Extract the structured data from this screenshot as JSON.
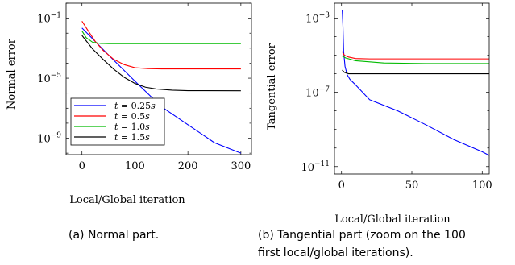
{
  "chart_data": [
    {
      "type": "line",
      "ylabel": "Normal error",
      "xlabel": "Local/Global iteration",
      "yscale": "log",
      "xlim": [
        -30,
        320
      ],
      "ylim_exp": [
        -10.1,
        0
      ],
      "xticks": [
        0,
        100,
        200,
        300
      ],
      "yticks": [
        {
          "base": "10",
          "exp": "−1",
          "value_exp": -1
        },
        {
          "base": "10",
          "exp": "−5",
          "value_exp": -5
        },
        {
          "base": "10",
          "exp": "−9",
          "value_exp": -9
        }
      ],
      "legend_position": "bottom-left",
      "series": [
        {
          "name": "t = 0.25s",
          "var": "t",
          "val": "0.25",
          "unit": "s",
          "color": "#0000ff",
          "points": [
            [
              0,
              -1.65
            ],
            [
              50,
              -3.45
            ],
            [
              100,
              -5.2
            ],
            [
              150,
              -6.9
            ],
            [
              200,
              -8.1
            ],
            [
              250,
              -9.3
            ],
            [
              300,
              -10.0
            ]
          ]
        },
        {
          "name": "t = 0.5s",
          "var": "t",
          "val": "0.5",
          "unit": "s",
          "color": "#ff0000",
          "points": [
            [
              0,
              -1.2
            ],
            [
              10,
              -1.75
            ],
            [
              25,
              -2.55
            ],
            [
              40,
              -3.15
            ],
            [
              60,
              -3.75
            ],
            [
              80,
              -4.1
            ],
            [
              100,
              -4.3
            ],
            [
              125,
              -4.36
            ],
            [
              150,
              -4.38
            ],
            [
              200,
              -4.38
            ],
            [
              300,
              -4.38
            ]
          ]
        },
        {
          "name": "t = 1.0s",
          "var": "t",
          "val": "1.0",
          "unit": "s",
          "color": "#00bb00",
          "points": [
            [
              0,
              -1.85
            ],
            [
              8,
              -2.3
            ],
            [
              20,
              -2.6
            ],
            [
              35,
              -2.68
            ],
            [
              50,
              -2.7
            ],
            [
              100,
              -2.7
            ],
            [
              200,
              -2.7
            ],
            [
              300,
              -2.7
            ]
          ]
        },
        {
          "name": "t = 1.5s",
          "var": "t",
          "val": "1.5",
          "unit": "s",
          "color": "#000000",
          "points": [
            [
              0,
              -2.15
            ],
            [
              20,
              -3.05
            ],
            [
              40,
              -3.75
            ],
            [
              60,
              -4.4
            ],
            [
              80,
              -4.95
            ],
            [
              100,
              -5.35
            ],
            [
              120,
              -5.6
            ],
            [
              140,
              -5.72
            ],
            [
              170,
              -5.8
            ],
            [
              200,
              -5.83
            ],
            [
              300,
              -5.84
            ]
          ]
        }
      ]
    },
    {
      "type": "line",
      "ylabel": "Tangential error",
      "xlabel": "Local/Global iteration",
      "yscale": "log",
      "xlim": [
        -5,
        105
      ],
      "ylim_exp": [
        -11.4,
        -2.2
      ],
      "xticks": [
        0,
        50,
        100
      ],
      "yticks": [
        {
          "base": "10",
          "exp": "−3",
          "value_exp": -3
        },
        {
          "base": "10",
          "exp": "−7",
          "value_exp": -7
        },
        {
          "base": "10",
          "exp": "−11",
          "value_exp": -11
        }
      ],
      "series": [
        {
          "name": "t = 0.25s",
          "color": "#0000ff",
          "points": [
            [
              0.5,
              -2.55
            ],
            [
              1,
              -3.4
            ],
            [
              1.5,
              -4.8
            ],
            [
              2.5,
              -5.6
            ],
            [
              4,
              -6.05
            ],
            [
              6,
              -6.3
            ],
            [
              10,
              -6.6
            ],
            [
              20,
              -7.4
            ],
            [
              40,
              -8.0
            ],
            [
              60,
              -8.75
            ],
            [
              80,
              -9.55
            ],
            [
              100,
              -10.2
            ],
            [
              105,
              -10.4
            ]
          ]
        },
        {
          "name": "t = 0.5s",
          "color": "#ff0000",
          "points": [
            [
              0.5,
              -4.8
            ],
            [
              2,
              -5.0
            ],
            [
              5,
              -5.1
            ],
            [
              10,
              -5.18
            ],
            [
              20,
              -5.2
            ],
            [
              50,
              -5.2
            ],
            [
              100,
              -5.2
            ],
            [
              105,
              -5.2
            ]
          ]
        },
        {
          "name": "t = 1.0s",
          "color": "#00bb00",
          "points": [
            [
              0.5,
              -5.05
            ],
            [
              3,
              -5.15
            ],
            [
              10,
              -5.3
            ],
            [
              30,
              -5.42
            ],
            [
              60,
              -5.45
            ],
            [
              100,
              -5.45
            ],
            [
              105,
              -5.45
            ]
          ]
        },
        {
          "name": "t = 1.5s",
          "color": "#000000",
          "points": [
            [
              0.5,
              -5.8
            ],
            [
              2,
              -5.92
            ],
            [
              5,
              -6.0
            ],
            [
              20,
              -6.0
            ],
            [
              60,
              -6.0
            ],
            [
              105,
              -6.0
            ]
          ]
        }
      ]
    }
  ],
  "captions": {
    "a": "(a) Normal part.",
    "b_line1": "(b) Tangential part (zoom on the 100",
    "b_line2": "first local/global iterations)."
  }
}
